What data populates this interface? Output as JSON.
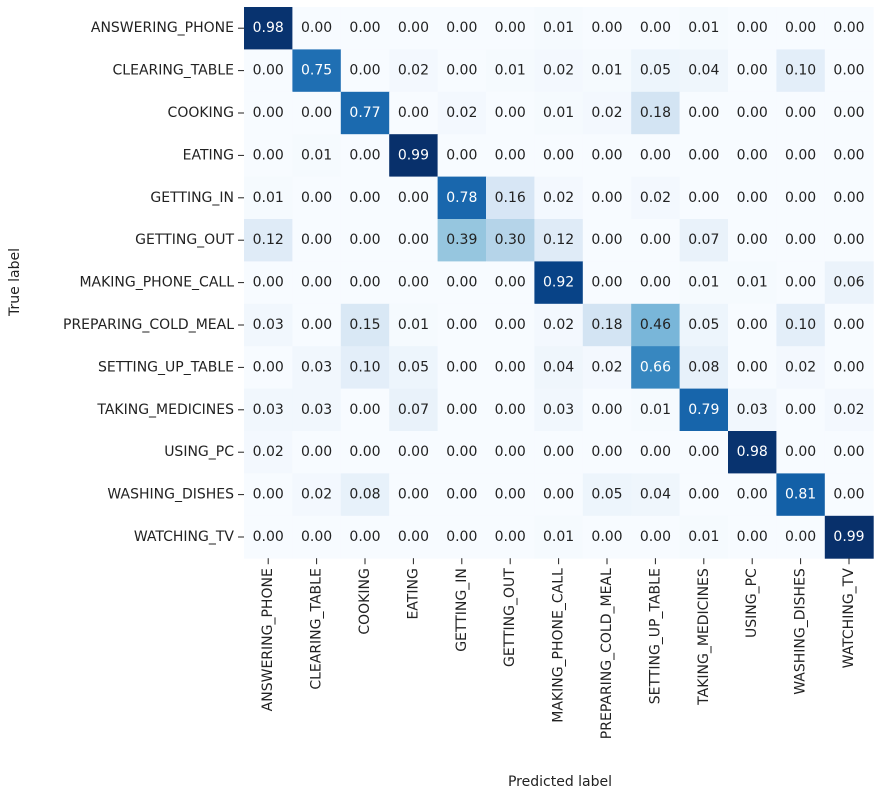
{
  "chart_data": {
    "type": "heatmap",
    "cmap": "Blues",
    "xlabel": "Predicted label",
    "ylabel": "True label",
    "x_categories": [
      "ANSWERING_PHONE",
      "CLEARING_TABLE",
      "COOKING",
      "EATING",
      "GETTING_IN",
      "GETTING_OUT",
      "MAKING_PHONE_CALL",
      "PREPARING_COLD_MEAL",
      "SETTING_UP_TABLE",
      "TAKING_MEDICINES",
      "USING_PC",
      "WASHING_DISHES",
      "WATCHING_TV"
    ],
    "y_categories": [
      "ANSWERING_PHONE",
      "CLEARING_TABLE",
      "COOKING",
      "EATING",
      "GETTING_IN",
      "GETTING_OUT",
      "MAKING_PHONE_CALL",
      "PREPARING_COLD_MEAL",
      "SETTING_UP_TABLE",
      "TAKING_MEDICINES",
      "USING_PC",
      "WASHING_DISHES",
      "WATCHING_TV"
    ],
    "values": [
      [
        0.98,
        0,
        0,
        0,
        0,
        0,
        0.01,
        0,
        0,
        0.01,
        0,
        0,
        0
      ],
      [
        0,
        0.75,
        0,
        0.02,
        0,
        0.01,
        0.02,
        0.01,
        0.05,
        0.04,
        0,
        0.1,
        0
      ],
      [
        0,
        0,
        0.77,
        0,
        0.02,
        0,
        0.01,
        0.02,
        0.18,
        0,
        0,
        0,
        0
      ],
      [
        0,
        0.01,
        0,
        0.99,
        0,
        0,
        0,
        0,
        0,
        0,
        0,
        0,
        0
      ],
      [
        0.01,
        0,
        0,
        0,
        0.78,
        0.16,
        0.02,
        0,
        0.02,
        0,
        0,
        0,
        0
      ],
      [
        0.12,
        0,
        0,
        0,
        0.39,
        0.3,
        0.12,
        0,
        0,
        0.07,
        0,
        0,
        0
      ],
      [
        0,
        0,
        0,
        0,
        0,
        0,
        0.92,
        0,
        0,
        0.01,
        0.01,
        0,
        0.06
      ],
      [
        0.03,
        0,
        0.15,
        0.01,
        0,
        0,
        0.02,
        0.18,
        0.46,
        0.05,
        0,
        0.1,
        0
      ],
      [
        0,
        0.03,
        0.1,
        0.05,
        0,
        0,
        0.04,
        0.02,
        0.66,
        0.08,
        0,
        0.02,
        0
      ],
      [
        0.03,
        0.03,
        0,
        0.07,
        0,
        0,
        0.03,
        0,
        0.01,
        0.79,
        0.03,
        0,
        0.02
      ],
      [
        0.02,
        0,
        0,
        0,
        0,
        0,
        0,
        0,
        0,
        0,
        0.98,
        0,
        0
      ],
      [
        0,
        0.02,
        0.08,
        0,
        0,
        0,
        0,
        0.05,
        0.04,
        0,
        0,
        0.81,
        0
      ],
      [
        0,
        0,
        0,
        0,
        0,
        0,
        0.01,
        0,
        0,
        0.01,
        0,
        0,
        0.99
      ]
    ],
    "value_labels": [
      [
        "0.98",
        "0.00",
        "0.00",
        "0.00",
        "0.00",
        "0.00",
        "0.01",
        "0.00",
        "0.00",
        "0.01",
        "0.00",
        "0.00",
        "0.00"
      ],
      [
        "0.00",
        "0.75",
        "0.00",
        "0.02",
        "0.00",
        "0.01",
        "0.02",
        "0.01",
        "0.05",
        "0.04",
        "0.00",
        "0.10",
        "0.00"
      ],
      [
        "0.00",
        "0.00",
        "0.77",
        "0.00",
        "0.02",
        "0.00",
        "0.01",
        "0.02",
        "0.18",
        "0.00",
        "0.00",
        "0.00",
        "0.00"
      ],
      [
        "0.00",
        "0.01",
        "0.00",
        "0.99",
        "0.00",
        "0.00",
        "0.00",
        "0.00",
        "0.00",
        "0.00",
        "0.00",
        "0.00",
        "0.00"
      ],
      [
        "0.01",
        "0.00",
        "0.00",
        "0.00",
        "0.78",
        "0.16",
        "0.02",
        "0.00",
        "0.02",
        "0.00",
        "0.00",
        "0.00",
        "0.00"
      ],
      [
        "0.12",
        "0.00",
        "0.00",
        "0.00",
        "0.39",
        "0.30",
        "0.12",
        "0.00",
        "0.00",
        "0.07",
        "0.00",
        "0.00",
        "0.00"
      ],
      [
        "0.00",
        "0.00",
        "0.00",
        "0.00",
        "0.00",
        "0.00",
        "0.92",
        "0.00",
        "0.00",
        "0.01",
        "0.01",
        "0.00",
        "0.06"
      ],
      [
        "0.03",
        "0.00",
        "0.15",
        "0.01",
        "0.00",
        "0.00",
        "0.02",
        "0.18",
        "0.46",
        "0.05",
        "0.00",
        "0.10",
        "0.00"
      ],
      [
        "0.00",
        "0.03",
        "0.10",
        "0.05",
        "0.00",
        "0.00",
        "0.04",
        "0.02",
        "0.66",
        "0.08",
        "0.00",
        "0.02",
        "0.00"
      ],
      [
        "0.03",
        "0.03",
        "0.00",
        "0.07",
        "0.00",
        "0.00",
        "0.03",
        "0.00",
        "0.01",
        "0.79",
        "0.03",
        "0.00",
        "0.02"
      ],
      [
        "0.02",
        "0.00",
        "0.00",
        "0.00",
        "0.00",
        "0.00",
        "0.00",
        "0.00",
        "0.00",
        "0.00",
        "0.98",
        "0.00",
        "0.00"
      ],
      [
        "0.00",
        "0.02",
        "0.08",
        "0.00",
        "0.00",
        "0.00",
        "0.00",
        "0.05",
        "0.04",
        "0.00",
        "0.00",
        "0.81",
        "0.00"
      ],
      [
        "0.00",
        "0.00",
        "0.00",
        "0.00",
        "0.00",
        "0.00",
        "0.01",
        "0.00",
        "0.00",
        "0.01",
        "0.00",
        "0.00",
        "0.99"
      ]
    ]
  }
}
